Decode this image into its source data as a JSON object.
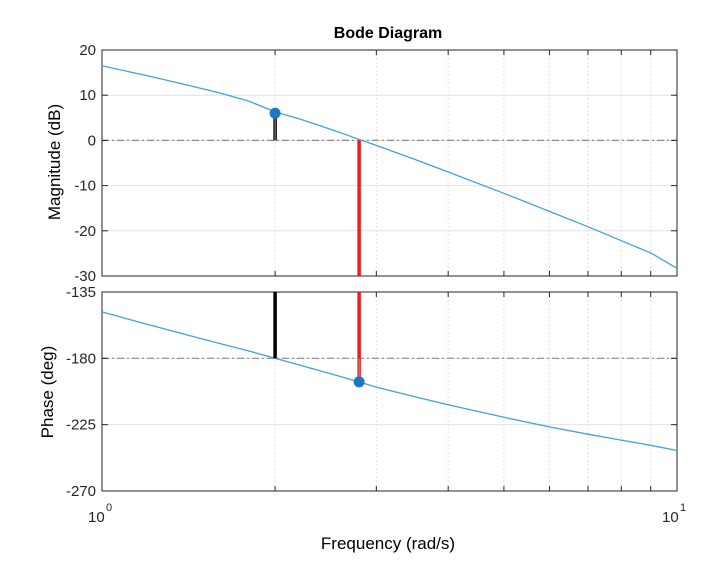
{
  "chart_data": [
    {
      "type": "line",
      "title": "Bode Diagram",
      "ylabel": "Magnitude (dB)",
      "xscale": "log",
      "xlim": [
        1,
        10
      ],
      "ylim": [
        -30,
        20
      ],
      "yticks": [
        20,
        10,
        0,
        -10,
        -20,
        -30
      ],
      "ytick_labels": [
        "20",
        "10",
        "0",
        "-10",
        "-20",
        "-30"
      ],
      "grid": true,
      "series": [
        {
          "name": "magnitude",
          "x": [
            1,
            1.2,
            1.4,
            1.6,
            1.8,
            2.0,
            2.2,
            2.4,
            2.6,
            2.8,
            3.0,
            3.5,
            4,
            5,
            6,
            7,
            8,
            9,
            10
          ],
          "values": [
            16.5,
            14.3,
            12.3,
            10.5,
            8.7,
            6.3,
            4.8,
            3.2,
            1.7,
            0.2,
            -1.1,
            -4.2,
            -7.0,
            -11.7,
            -15.7,
            -19.1,
            -22.2,
            -24.9,
            -28.3
          ],
          "color": "#4a9fd8"
        }
      ],
      "reference_line": {
        "y": 0,
        "style": "dash-dot",
        "color": "#8c8c8c"
      },
      "markers": [
        {
          "x": 2.0,
          "y": 6.0,
          "color": "#1f77c4"
        }
      ],
      "annotations": [
        {
          "kind": "margin-bar",
          "x": 2.0,
          "y_from": 6.0,
          "y_to": 0,
          "color": "#000000"
        },
        {
          "kind": "margin-bar",
          "x": 2.8,
          "y_from": 0,
          "y_to": -30,
          "color": "#e8201c"
        }
      ]
    },
    {
      "type": "line",
      "ylabel": "Phase (deg)",
      "xlabel": "Frequency  (rad/s)",
      "xscale": "log",
      "xlim": [
        1,
        10
      ],
      "ylim": [
        -270,
        -135
      ],
      "yticks": [
        -135,
        -180,
        -225,
        -270
      ],
      "ytick_labels": [
        "-135",
        "-180",
        "-225",
        "-270"
      ],
      "xtick_labels": [
        {
          "base": "10",
          "exp": "0"
        },
        {
          "base": "10",
          "exp": "1"
        }
      ],
      "grid": true,
      "series": [
        {
          "name": "phase",
          "x": [
            1,
            1.2,
            1.5,
            1.8,
            2.0,
            2.5,
            2.8,
            3.0,
            3.5,
            4,
            5,
            6,
            7,
            8,
            9,
            10
          ],
          "values": [
            -148.5,
            -157.0,
            -167.0,
            -175.0,
            -180.0,
            -190.5,
            -196.0,
            -199.5,
            -206.0,
            -211.5,
            -220.0,
            -226.5,
            -231.5,
            -235.5,
            -239.0,
            -242.5
          ],
          "color": "#4a9fd8"
        }
      ],
      "reference_line": {
        "y": -180,
        "style": "dash-dot",
        "color": "#8c8c8c"
      },
      "markers": [
        {
          "x": 2.8,
          "y": -196.0,
          "color": "#1f77c4"
        }
      ],
      "annotations": [
        {
          "kind": "margin-bar",
          "x": 2.0,
          "y_from": -135,
          "y_to": -180,
          "color": "#000000"
        },
        {
          "kind": "margin-bar",
          "x": 2.8,
          "y_from": -135,
          "y_to": -196.0,
          "color": "#e8201c"
        }
      ]
    }
  ]
}
